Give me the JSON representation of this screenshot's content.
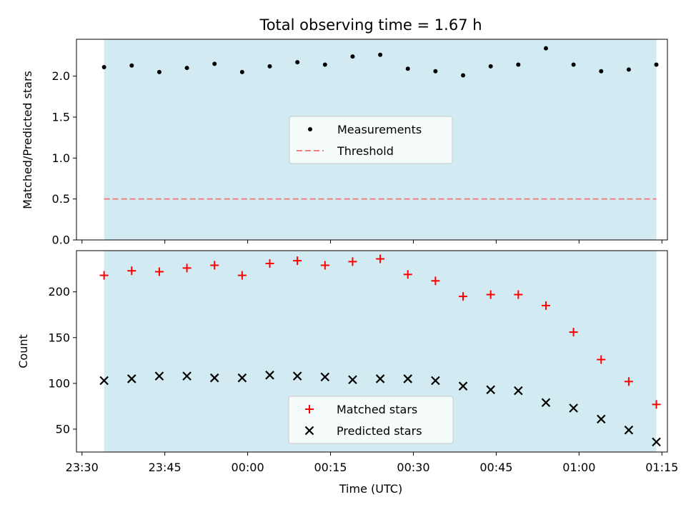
{
  "figure": {
    "title": "Total observing time = 1.67 h"
  },
  "chart_data": [
    {
      "type": "scatter",
      "title": "Total observing time = 1.67 h",
      "xlabel": "",
      "ylabel": "Matched/Predicted stars",
      "ylim": [
        0.0,
        2.45
      ],
      "yticks": [
        0.0,
        0.5,
        1.0,
        1.5,
        2.0
      ],
      "ytick_labels": [
        "0.0",
        "0.5",
        "1.0",
        "1.5",
        "2.0"
      ],
      "shaded_time_span": [
        "23:34",
        "01:14"
      ],
      "shade_color": "#add8e6",
      "x": [
        "23:34",
        "23:39",
        "23:44",
        "23:49",
        "23:54",
        "23:59",
        "00:04",
        "00:09",
        "00:14",
        "00:19",
        "00:24",
        "00:29",
        "00:34",
        "00:39",
        "00:44",
        "00:49",
        "00:54",
        "00:59",
        "01:04",
        "01:09",
        "01:14"
      ],
      "series": [
        {
          "name": "Measurements",
          "marker": "point",
          "color": "#000000",
          "values": [
            2.11,
            2.13,
            2.05,
            2.1,
            2.15,
            2.05,
            2.12,
            2.17,
            2.14,
            2.24,
            2.26,
            2.09,
            2.06,
            2.01,
            2.12,
            2.14,
            2.34,
            2.14,
            2.06,
            2.08,
            2.14
          ]
        },
        {
          "name": "Threshold",
          "marker": "dashed-line",
          "color": "#f08080",
          "value": 0.5
        }
      ],
      "legend_position": "center"
    },
    {
      "type": "scatter",
      "xlabel": "Time (UTC)",
      "ylabel": "Count",
      "ylim": [
        25,
        245
      ],
      "yticks": [
        50,
        100,
        150,
        200
      ],
      "ytick_labels": [
        "50",
        "100",
        "150",
        "200"
      ],
      "xlim": [
        "23:29",
        "01:16"
      ],
      "xticks": [
        "23:30",
        "23:45",
        "00:00",
        "00:15",
        "00:30",
        "00:45",
        "01:00",
        "01:15"
      ],
      "xtick_labels": [
        "23:30",
        "23:45",
        "00:00",
        "00:15",
        "00:30",
        "00:45",
        "01:00",
        "01:15"
      ],
      "shaded_time_span": [
        "23:34",
        "01:14"
      ],
      "shade_color": "#add8e6",
      "x": [
        "23:34",
        "23:39",
        "23:44",
        "23:49",
        "23:54",
        "23:59",
        "00:04",
        "00:09",
        "00:14",
        "00:19",
        "00:24",
        "00:29",
        "00:34",
        "00:39",
        "00:44",
        "00:49",
        "00:54",
        "00:59",
        "01:04",
        "01:09",
        "01:14"
      ],
      "series": [
        {
          "name": "Matched stars",
          "marker": "plus",
          "color": "#ff0000",
          "values": [
            218,
            223,
            222,
            226,
            229,
            218,
            231,
            234,
            229,
            233,
            236,
            219,
            212,
            195,
            197,
            197,
            185,
            156,
            126,
            102,
            77
          ]
        },
        {
          "name": "Predicted stars",
          "marker": "x",
          "color": "#000000",
          "values": [
            103,
            105,
            108,
            108,
            106,
            106,
            109,
            108,
            107,
            104,
            105,
            105,
            103,
            97,
            93,
            92,
            79,
            73,
            61,
            49,
            36
          ]
        }
      ],
      "legend_position": "lower center"
    }
  ]
}
